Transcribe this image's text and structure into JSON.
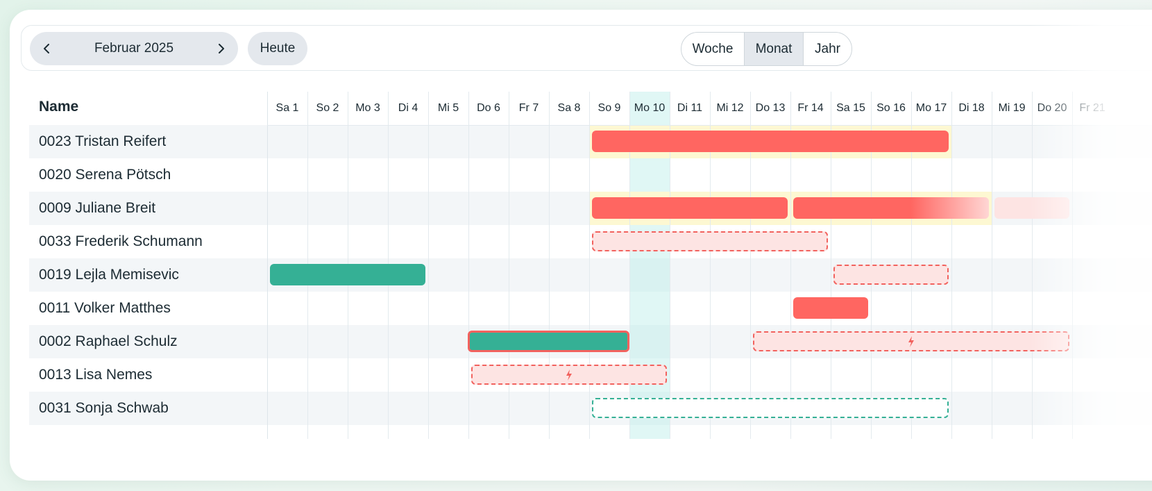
{
  "toolbar": {
    "month_label": "Februar 2025",
    "prev_icon": "chevron-left-icon",
    "next_icon": "chevron-right-icon",
    "today_label": "Heute",
    "views": [
      "Woche",
      "Monat",
      "Jahr"
    ],
    "active_view": "Monat"
  },
  "grid": {
    "name_header": "Name",
    "days": [
      "Sa 1",
      "So 2",
      "Mo 3",
      "Di 4",
      "Mi 5",
      "Do 6",
      "Fr 7",
      "Sa 8",
      "So 9",
      "Mo 10",
      "Di 11",
      "Mi 12",
      "Do 13",
      "Fr 14",
      "Sa 15",
      "So 16",
      "Mo 17",
      "Di 18",
      "Mi 19",
      "Do 20",
      "Fr 21"
    ],
    "today_index": 9,
    "rows": [
      {
        "name": "0023 Tristan Reifert"
      },
      {
        "name": "0020 Serena Pötsch"
      },
      {
        "name": "0009 Juliane Breit"
      },
      {
        "name": "0033 Frederik Schumann"
      },
      {
        "name": "0019 Lejla Memisevic"
      },
      {
        "name": "0011 Volker Matthes"
      },
      {
        "name": "0002 Raphael Schulz"
      },
      {
        "name": "0013 Lisa Nemes"
      },
      {
        "name": "0031 Sonja Schwab"
      }
    ]
  },
  "colors": {
    "absence_red": "#ff6661",
    "absence_green": "#35b095",
    "pending_red_bg": "#fde4e3",
    "today_highlight": "#baeee8",
    "weekend_highlight": "#fdf8d2"
  },
  "entries": [
    {
      "row": 0,
      "start": 9,
      "end": 17,
      "kind": "red",
      "highlight": [
        9,
        17
      ]
    },
    {
      "row": 2,
      "start": 9,
      "end": 13,
      "kind": "red",
      "highlight": [
        9,
        18
      ]
    },
    {
      "row": 2,
      "start": 14,
      "end": 18,
      "kind": "red"
    },
    {
      "row": 2,
      "start": 19,
      "end": 20,
      "kind": "faint-red"
    },
    {
      "row": 3,
      "start": 9,
      "end": 14,
      "kind": "dash-red"
    },
    {
      "row": 4,
      "start": 1,
      "end": 4,
      "kind": "green"
    },
    {
      "row": 4,
      "start": 15,
      "end": 17,
      "kind": "dash-red"
    },
    {
      "row": 5,
      "start": 14,
      "end": 15,
      "kind": "red"
    },
    {
      "row": 6,
      "start": 6,
      "end": 9,
      "kind": "green-outlined"
    },
    {
      "row": 6,
      "start": 13,
      "end": 20,
      "kind": "dash-red",
      "icon": "lightning-icon"
    },
    {
      "row": 7,
      "start": 6,
      "end": 10,
      "kind": "dash-red",
      "icon": "lightning-icon"
    },
    {
      "row": 8,
      "start": 9,
      "end": 17,
      "kind": "dash-green"
    }
  ]
}
